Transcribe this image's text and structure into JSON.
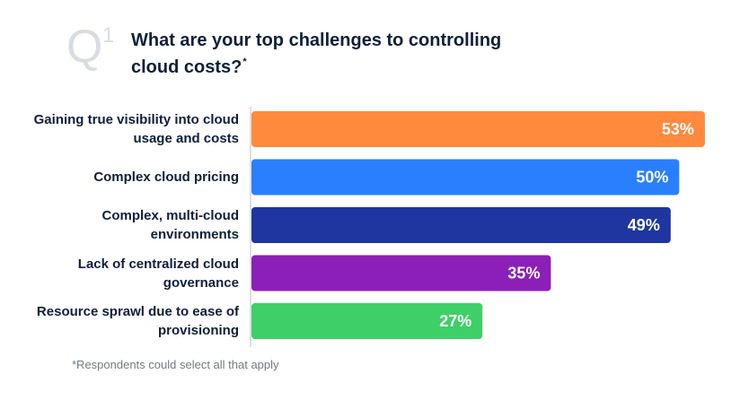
{
  "question": {
    "letter": "Q",
    "number": "1",
    "title": "What are your top challenges to controlling cloud costs?",
    "title_mark": "*"
  },
  "footnote": "*Respondents could select all that apply",
  "chart_data": {
    "type": "bar",
    "orientation": "horizontal",
    "title": "What are your top challenges to controlling cloud costs?*",
    "xlabel": "",
    "ylabel": "",
    "xlim": [
      0,
      55
    ],
    "grid": false,
    "legend": "none",
    "categories": [
      "Gaining true visibility into cloud usage and costs",
      "Complex cloud pricing",
      "Complex, multi-cloud environments",
      "Lack of centralized cloud governance",
      "Resource sprawl due to ease of provisioning"
    ],
    "values": [
      53,
      50,
      49,
      35,
      27
    ],
    "value_labels": [
      "53%",
      "50%",
      "49%",
      "35%",
      "27%"
    ],
    "colors": [
      "#FF8A3D",
      "#2A7FFF",
      "#1F35A0",
      "#8B1FB8",
      "#3ECF68"
    ]
  }
}
